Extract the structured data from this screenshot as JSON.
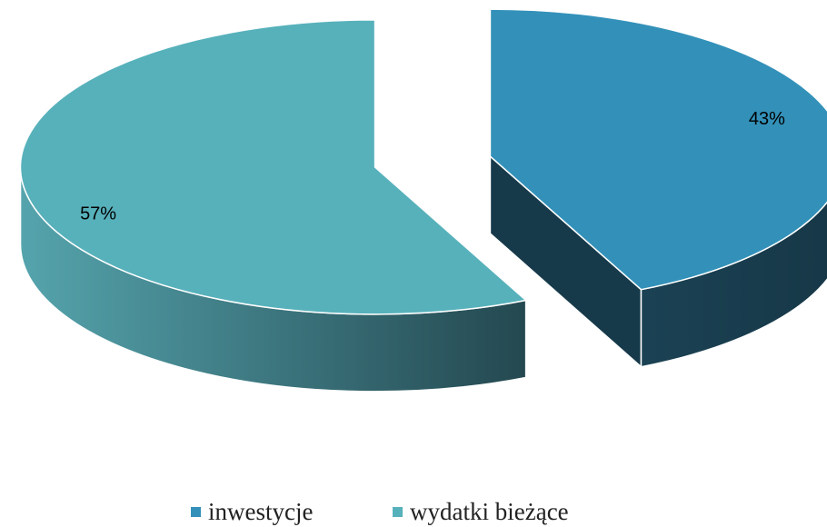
{
  "chart_data": {
    "type": "pie",
    "categories": [
      "inwestycje",
      "wydatki bieżące"
    ],
    "values": [
      43,
      57
    ],
    "value_labels": [
      "43%",
      "57%"
    ],
    "colors": [
      "#3391b9",
      "#57b1bb"
    ],
    "legend": "bottom"
  }
}
